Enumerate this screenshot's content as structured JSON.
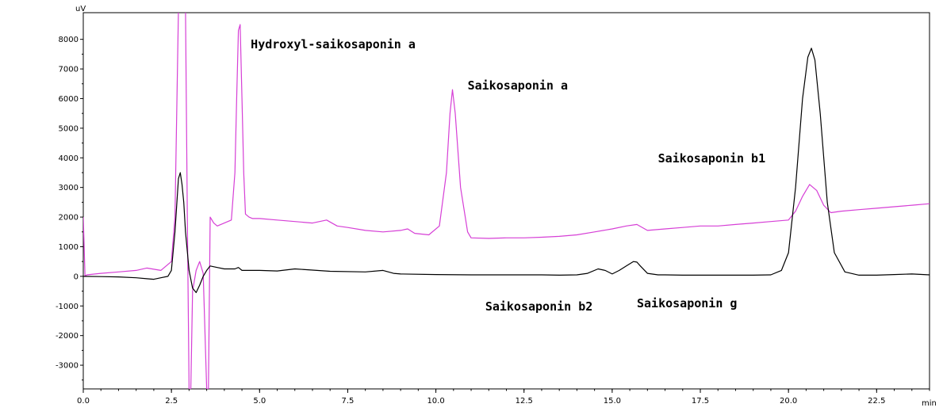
{
  "chart_data": {
    "type": "line",
    "title": "",
    "xlabel": "",
    "ylabel": "",
    "x_unit": "min",
    "y_unit": "uV",
    "xlim": [
      0.0,
      24.0
    ],
    "ylim": [
      -3800,
      8900
    ],
    "x_ticks": [
      "0.0",
      "2.5",
      "5.0",
      "7.5",
      "10.0",
      "12.5",
      "15.0",
      "17.5",
      "20.0",
      "22.5"
    ],
    "y_ticks": [
      "8000",
      "7000",
      "6000",
      "5000",
      "4000",
      "3000",
      "2000",
      "1000",
      "0",
      "-1000",
      "-2000",
      "-3000"
    ],
    "grid": false,
    "legend": "none",
    "series": [
      {
        "color": "#d63fd6",
        "x": [
          0.0,
          0.05,
          0.1,
          0.5,
          1.0,
          1.5,
          1.8,
          2.2,
          2.5,
          2.6,
          2.7,
          2.78,
          2.85,
          2.9,
          2.95,
          3.0,
          3.05,
          3.1,
          3.2,
          3.3,
          3.4,
          3.5,
          3.55,
          3.6,
          3.7,
          3.8,
          3.9,
          4.0,
          4.2,
          4.3,
          4.35,
          4.4,
          4.45,
          4.5,
          4.55,
          4.6,
          4.7,
          4.8,
          5.0,
          5.5,
          6.0,
          6.5,
          6.9,
          7.2,
          7.5,
          8.0,
          8.5,
          9.0,
          9.2,
          9.4,
          9.8,
          10.1,
          10.3,
          10.4,
          10.47,
          10.55,
          10.7,
          10.9,
          11.0,
          11.5,
          12.0,
          12.5,
          13.0,
          13.5,
          14.0,
          14.5,
          15.0,
          15.4,
          15.7,
          16.0,
          16.5,
          17.0,
          17.5,
          18.0,
          18.5,
          19.0,
          19.5,
          20.0,
          20.2,
          20.4,
          20.6,
          20.8,
          21.0,
          21.2,
          21.5,
          22.0,
          22.5,
          23.0,
          23.5,
          24.0
        ],
        "values": [
          2000,
          0,
          50,
          100,
          150,
          200,
          280,
          200,
          500,
          2000,
          9000,
          9000,
          9000,
          9000,
          2000,
          -3800,
          -3800,
          -500,
          200,
          500,
          100,
          -3800,
          -3800,
          2000,
          1800,
          1700,
          1750,
          1800,
          1900,
          3500,
          6000,
          8300,
          8500,
          6000,
          3500,
          2100,
          2000,
          1950,
          1950,
          1900,
          1850,
          1800,
          1900,
          1700,
          1650,
          1550,
          1500,
          1550,
          1600,
          1450,
          1400,
          1700,
          3500,
          5500,
          6300,
          5500,
          3000,
          1500,
          1300,
          1280,
          1300,
          1300,
          1320,
          1350,
          1400,
          1500,
          1600,
          1700,
          1750,
          1550,
          1600,
          1650,
          1700,
          1700,
          1750,
          1800,
          1850,
          1900,
          2200,
          2700,
          3100,
          2900,
          2400,
          2150,
          2200,
          2250,
          2300,
          2350,
          2400,
          2450
        ]
      },
      {
        "color": "#000000",
        "x": [
          0.0,
          0.5,
          1.0,
          1.5,
          1.8,
          2.0,
          2.2,
          2.4,
          2.5,
          2.6,
          2.7,
          2.75,
          2.8,
          2.85,
          2.9,
          3.0,
          3.1,
          3.2,
          3.3,
          3.4,
          3.5,
          3.6,
          3.8,
          4.0,
          4.3,
          4.4,
          4.5,
          5.0,
          5.5,
          6.0,
          7.0,
          8.0,
          8.5,
          8.8,
          9.0,
          10.0,
          11.0,
          12.0,
          13.0,
          13.5,
          14.0,
          14.3,
          14.6,
          14.8,
          15.0,
          15.2,
          15.4,
          15.6,
          15.7,
          15.8,
          16.0,
          16.3,
          16.5,
          17.0,
          18.0,
          19.0,
          19.5,
          19.8,
          20.0,
          20.2,
          20.4,
          20.55,
          20.65,
          20.75,
          20.9,
          21.1,
          21.3,
          21.6,
          22.0,
          22.5,
          23.0,
          23.5,
          24.0
        ],
        "values": [
          0,
          -10,
          -20,
          -50,
          -80,
          -100,
          -50,
          0,
          200,
          1500,
          3300,
          3500,
          3100,
          2500,
          1500,
          200,
          -400,
          -550,
          -300,
          0,
          200,
          350,
          300,
          250,
          250,
          300,
          200,
          200,
          180,
          250,
          170,
          150,
          200,
          100,
          80,
          60,
          50,
          50,
          50,
          40,
          50,
          100,
          250,
          200,
          80,
          200,
          350,
          500,
          480,
          350,
          100,
          50,
          50,
          40,
          40,
          40,
          50,
          200,
          800,
          3000,
          6000,
          7400,
          7700,
          7300,
          5500,
          2500,
          800,
          150,
          40,
          40,
          60,
          80,
          50
        ]
      }
    ],
    "annotations": [
      {
        "text": "Hydroxyl-saikosaponin a",
        "x": 4.75,
        "y": 7700
      },
      {
        "text": "Saikosaponin a",
        "x": 10.9,
        "y": 6300
      },
      {
        "text": "Saikosaponin b1",
        "x": 16.3,
        "y": 3850
      },
      {
        "text": "Saikosaponin b2",
        "x": 11.4,
        "y": -1150
      },
      {
        "text": "Saikosaponin g",
        "x": 15.7,
        "y": -1050
      }
    ]
  }
}
